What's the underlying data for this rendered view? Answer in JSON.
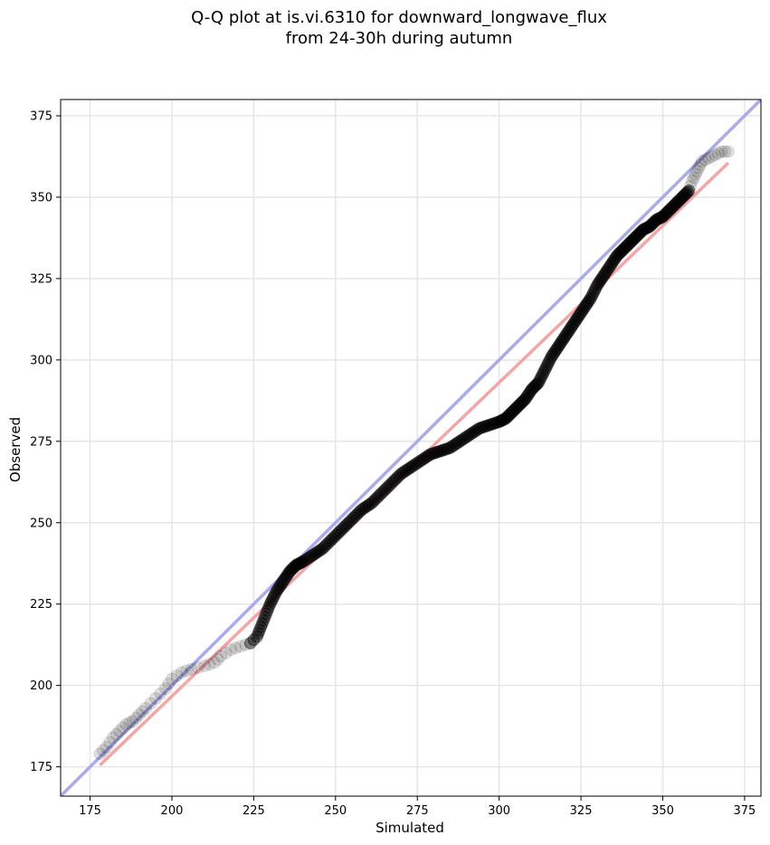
{
  "chart_data": {
    "type": "scatter",
    "title": "Q-Q plot at is.vi.6310 for downward_longwave_flux\nfrom 24-30h during autumn",
    "title_lines": [
      "Q-Q plot at is.vi.6310 for downward_longwave_flux",
      "from 24-30h during autumn"
    ],
    "xlabel": "Simulated",
    "ylabel": "Observed",
    "xlim": [
      166,
      380
    ],
    "ylim": [
      166,
      380
    ],
    "xticks": [
      175,
      200,
      225,
      250,
      275,
      300,
      325,
      350,
      375
    ],
    "yticks": [
      175,
      200,
      225,
      250,
      275,
      300,
      325,
      350,
      375
    ],
    "grid": true,
    "colors": {
      "points": "#000000",
      "identity_line": "#aaaaee",
      "fit_line": "#f4a6a6",
      "grid": "#e6e6e6"
    },
    "reference_lines": [
      {
        "kind": "identity",
        "x": [
          166,
          380
        ],
        "y": [
          166,
          380
        ]
      },
      {
        "kind": "fit",
        "x": [
          178,
          370
        ],
        "y": [
          175.5,
          360.5
        ]
      }
    ],
    "quantile_curve": {
      "x": [
        178,
        180,
        182,
        184,
        186,
        188,
        190,
        192,
        195,
        198,
        200,
        203,
        206,
        210,
        213,
        215,
        218,
        221,
        224,
        226,
        228,
        230,
        232,
        234,
        236,
        238,
        240,
        243,
        246,
        249,
        252,
        255,
        258,
        261,
        264,
        267,
        270,
        273,
        276,
        279,
        282,
        285,
        288,
        291,
        294,
        297,
        300,
        302,
        304,
        306,
        308,
        310,
        312,
        314,
        316,
        318,
        320,
        322,
        324,
        326,
        328,
        330,
        332,
        334,
        336,
        338,
        340,
        342,
        344,
        346,
        348,
        350,
        352,
        354,
        356,
        358,
        359,
        360,
        361,
        362,
        364,
        366,
        368,
        370
      ],
      "y": [
        179,
        181,
        184,
        186,
        188,
        189,
        191,
        193,
        196,
        199,
        202,
        204,
        205,
        206,
        207,
        209,
        211,
        212,
        213,
        215,
        220,
        225,
        229,
        232,
        235,
        237,
        238,
        240,
        242,
        245,
        248,
        251,
        254,
        256,
        259,
        262,
        265,
        267,
        269,
        271,
        272,
        273,
        275,
        277,
        279,
        280,
        281,
        282,
        284,
        286,
        288,
        291,
        293,
        297,
        301,
        304,
        307,
        310,
        313,
        316,
        319,
        323,
        326,
        329,
        332,
        334,
        336,
        338,
        340,
        341,
        343,
        344,
        346,
        348,
        350,
        352,
        355,
        357,
        359,
        361,
        362,
        363,
        364,
        364
      ]
    }
  }
}
